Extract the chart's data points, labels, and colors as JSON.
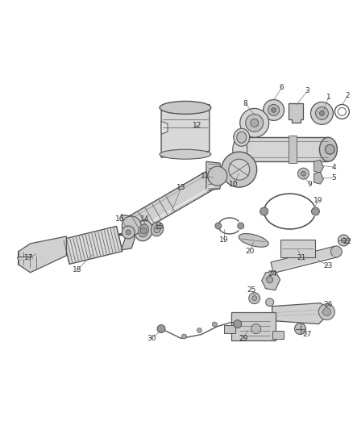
{
  "bg_color": "#ffffff",
  "line_color": "#555555",
  "dark_color": "#444444",
  "text_color": "#333333",
  "gray_fill": "#d0d0d0",
  "gray_dark": "#aaaaaa",
  "gray_mid": "#bbbbbb",
  "fig_width": 4.38,
  "fig_height": 5.33,
  "dpi": 100
}
